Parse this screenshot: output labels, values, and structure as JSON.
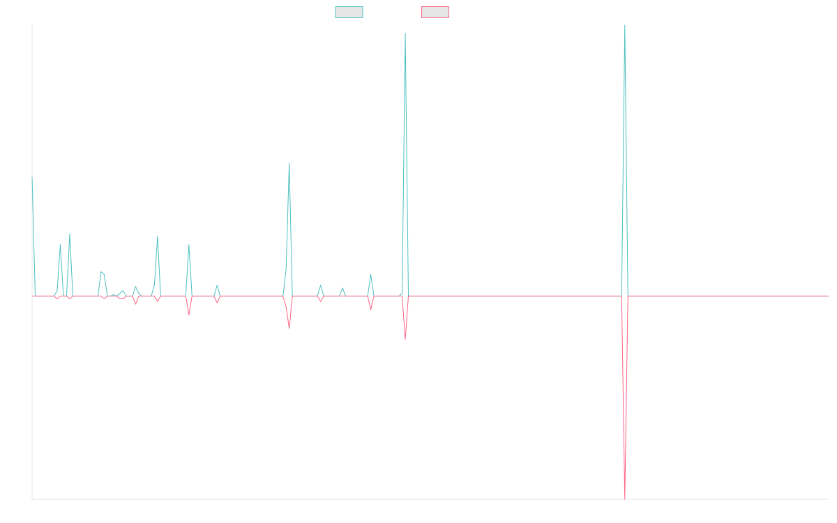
{
  "chart_data": {
    "type": "line",
    "x": [
      0,
      1,
      7,
      8,
      9,
      10,
      11,
      12,
      13,
      21,
      22,
      23,
      24,
      25,
      26,
      27,
      28,
      29,
      30,
      32,
      33,
      34,
      35,
      38,
      39,
      40,
      41,
      49,
      50,
      51,
      58,
      59,
      60,
      80,
      81,
      82,
      83,
      91,
      92,
      93,
      98,
      99,
      100,
      107,
      108,
      109,
      117,
      118,
      119,
      120,
      188,
      189,
      190,
      254
    ],
    "xlim": [
      0,
      254
    ],
    "ylim": [
      -75,
      100
    ],
    "series": [
      {
        "color": "#4bc0c0",
        "values": [
          44,
          0,
          0,
          2,
          19,
          0,
          0,
          23,
          0,
          0,
          9,
          8,
          0,
          0,
          0.5,
          0,
          1,
          2,
          0,
          0,
          3.5,
          1,
          0,
          0,
          4,
          22,
          0,
          0,
          19,
          0,
          0,
          4,
          0,
          0,
          10,
          49,
          0,
          0,
          4,
          0,
          0,
          3,
          0,
          0,
          8,
          0,
          0,
          1,
          97,
          0,
          0,
          100,
          0,
          0
        ]
      },
      {
        "color": "#ff6384",
        "values": [
          0,
          0,
          0,
          -1,
          0,
          0,
          0,
          -1,
          0,
          0,
          0,
          -1,
          0,
          0,
          0,
          0,
          -1,
          -1,
          0,
          0,
          -3,
          0,
          0,
          0,
          0,
          -2,
          0,
          0,
          -7,
          0,
          0,
          -2.5,
          0,
          0,
          -4,
          -12,
          0,
          0,
          -2,
          0,
          0,
          0,
          0,
          0,
          -5,
          0,
          0,
          0,
          -16,
          0,
          0,
          -75,
          0,
          0
        ]
      }
    ],
    "legend": "top"
  }
}
